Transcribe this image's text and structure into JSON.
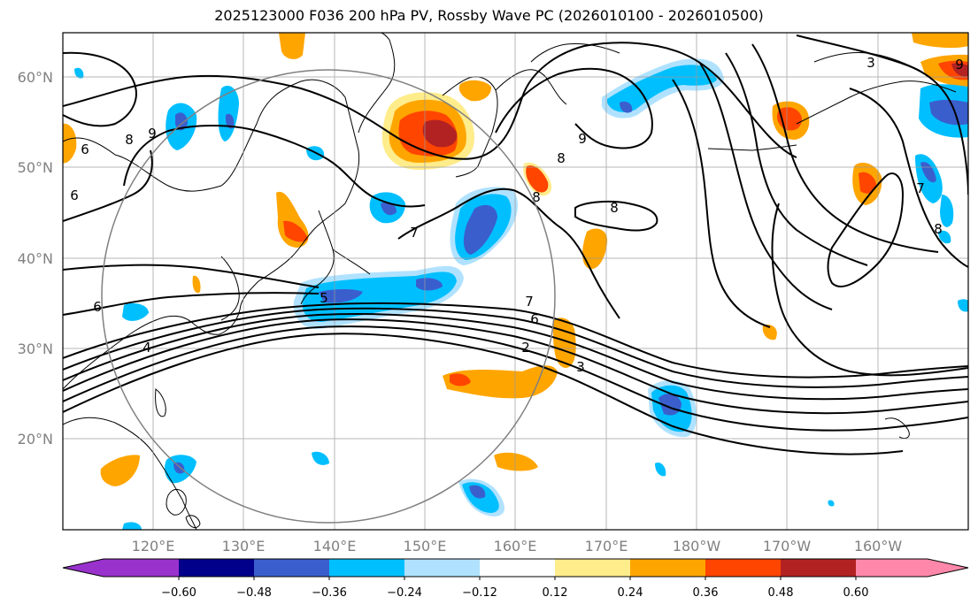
{
  "title": "2025123000 F036 200 hPa PV, Rossby Wave PC (2026010100 - 2026010500)",
  "lat_labels": [
    "60°N",
    "50°N",
    "40°N",
    "30°N",
    "20°N"
  ],
  "lon_labels": [
    "120°E",
    "130°E",
    "140°E",
    "150°E",
    "160°E",
    "170°E",
    "180°W",
    "170°W",
    "160°W"
  ],
  "colorbar": {
    "ticks": [
      "−0.60",
      "−0.48",
      "−0.36",
      "−0.24",
      "−0.12",
      "0.12",
      "0.24",
      "0.36",
      "0.48",
      "0.60"
    ],
    "colors": [
      "#9932CC",
      "#00008B",
      "#3A5FCD",
      "#00BFFF",
      "#B0E2FF",
      "#FFFFFF",
      "#FFEC8B",
      "#FFA500",
      "#FF4500",
      "#B22222",
      "#FF88AA"
    ]
  },
  "contour_labels": [
    "8",
    "9",
    "6",
    "6",
    "7",
    "5",
    "9",
    "8",
    "8",
    "8",
    "7",
    "6",
    "2",
    "3",
    "4",
    "6",
    "9",
    "3",
    "7",
    "8"
  ]
}
